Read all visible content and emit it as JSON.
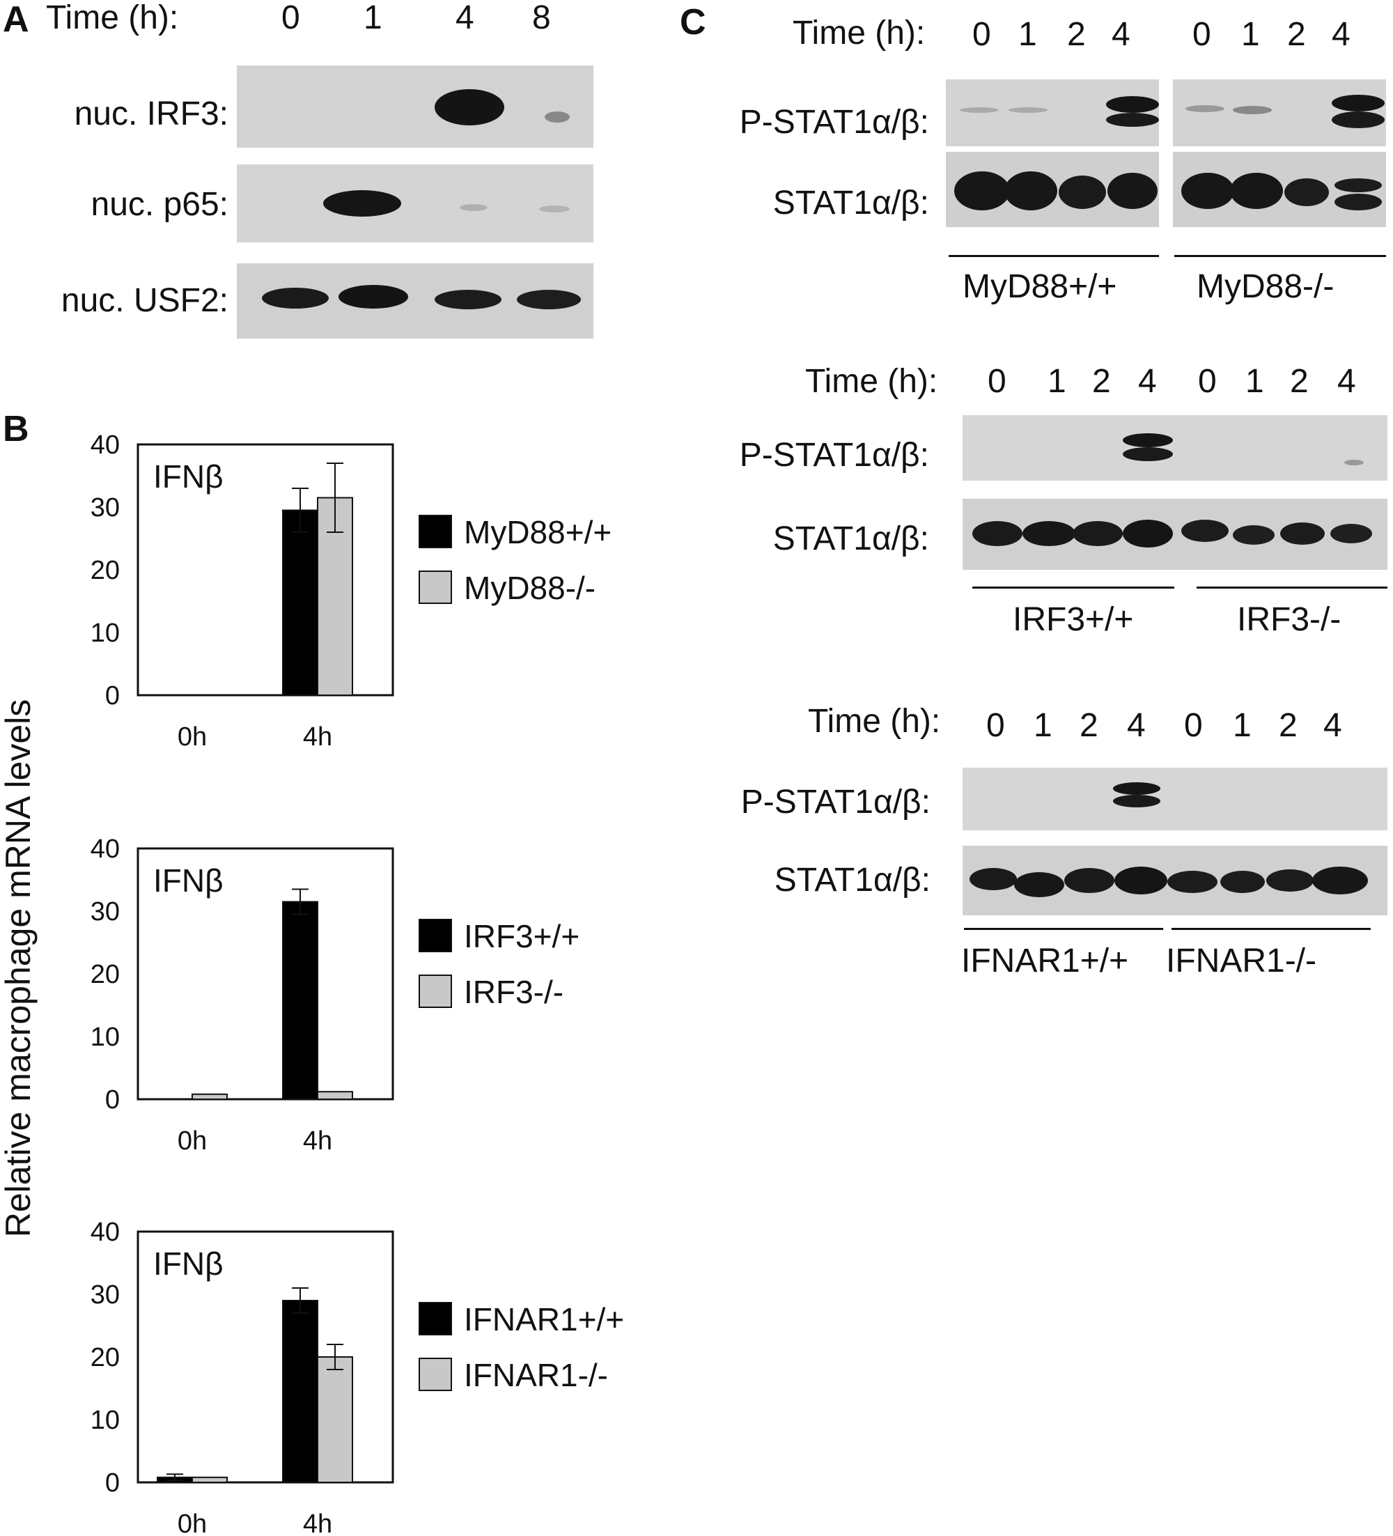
{
  "panels": {
    "A": {
      "letter": "A",
      "time_label": "Time (h):",
      "times": [
        "0",
        "1",
        "4",
        "8"
      ],
      "rows": [
        "nuc. IRF3:",
        "nuc. p65:",
        "nuc. USF2:"
      ]
    },
    "B": {
      "letter": "B",
      "ylabel": "Relative macrophage mRNA levels"
    },
    "C": {
      "letter": "C",
      "time_label": "Time (h):",
      "times": [
        "0",
        "1",
        "2",
        "4",
        "0",
        "1",
        "2",
        "4"
      ],
      "row_labels": [
        "P-STAT1α/β:",
        "STAT1α/β:"
      ],
      "groups": [
        {
          "left": "MyD88+/+",
          "right": "MyD88-/-"
        },
        {
          "left": "IRF3+/+",
          "right": "IRF3-/-"
        },
        {
          "left": "IFNAR1+/+",
          "right": "IFNAR1-/-"
        }
      ]
    }
  },
  "colors": {
    "wt": "#000000",
    "ko": "#c8c8c8",
    "blot_bg": "#cfcfcf",
    "band": "#1a1a1a"
  },
  "chart_data": [
    {
      "type": "bar",
      "title": "IFNβ",
      "categories": [
        "0h",
        "4h"
      ],
      "ylim": [
        0,
        40
      ],
      "yticks": [
        0,
        10,
        20,
        30,
        40
      ],
      "series": [
        {
          "name": "MyD88+/+",
          "values": [
            0,
            29.5
          ],
          "errors": [
            0,
            3.5
          ]
        },
        {
          "name": "MyD88-/-",
          "values": [
            0,
            31.5
          ],
          "errors": [
            0,
            5.5
          ]
        }
      ]
    },
    {
      "type": "bar",
      "title": "IFNβ",
      "categories": [
        "0h",
        "4h"
      ],
      "ylim": [
        0,
        40
      ],
      "yticks": [
        0,
        10,
        20,
        30,
        40
      ],
      "series": [
        {
          "name": "IRF3+/+",
          "values": [
            0,
            31.5
          ],
          "errors": [
            0,
            2
          ]
        },
        {
          "name": "IRF3-/-",
          "values": [
            0.8,
            1.2
          ],
          "errors": [
            0,
            0
          ]
        }
      ]
    },
    {
      "type": "bar",
      "title": "IFNβ",
      "categories": [
        "0h",
        "4h"
      ],
      "ylim": [
        0,
        40
      ],
      "yticks": [
        0,
        10,
        20,
        30,
        40
      ],
      "series": [
        {
          "name": "IFNAR1+/+",
          "values": [
            0.8,
            29
          ],
          "errors": [
            0.5,
            2
          ]
        },
        {
          "name": "IFNAR1-/-",
          "values": [
            0.8,
            20
          ],
          "errors": [
            0,
            2
          ]
        }
      ]
    }
  ]
}
